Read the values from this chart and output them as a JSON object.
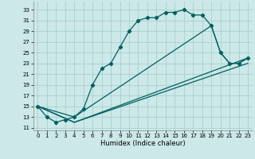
{
  "xlabel": "Humidex (Indice chaleur)",
  "bg_color": "#cce8e8",
  "grid_color": "#aad0d0",
  "line_color": "#006060",
  "xlim": [
    -0.5,
    23.5
  ],
  "ylim": [
    10.5,
    34.5
  ],
  "yticks": [
    11,
    13,
    15,
    17,
    19,
    21,
    23,
    25,
    27,
    29,
    31,
    33
  ],
  "xticks": [
    0,
    1,
    2,
    3,
    4,
    5,
    6,
    7,
    8,
    9,
    10,
    11,
    12,
    13,
    14,
    15,
    16,
    17,
    18,
    19,
    20,
    21,
    22,
    23
  ],
  "series1_x": [
    0,
    1,
    2,
    3,
    4,
    5,
    6,
    7,
    8,
    9,
    10,
    11,
    12,
    13,
    14,
    15,
    16,
    17,
    18,
    19,
    20,
    21,
    22,
    23
  ],
  "series1_y": [
    15,
    13,
    12,
    12.5,
    13,
    14.5,
    19,
    22,
    23,
    26,
    29,
    31,
    31.5,
    31.5,
    32.5,
    32.5,
    33,
    32,
    32,
    30,
    25,
    23,
    23,
    24
  ],
  "series2_x": [
    0,
    4,
    19,
    20,
    21,
    22,
    23
  ],
  "series2_y": [
    15,
    13,
    30,
    25,
    23,
    23,
    24
  ],
  "series3_x": [
    0,
    4,
    23
  ],
  "series3_y": [
    15,
    12,
    24
  ],
  "series4_x": [
    0,
    4,
    23
  ],
  "series4_y": [
    15,
    12,
    23
  ],
  "xlabel_fontsize": 6,
  "tick_fontsize": 5
}
